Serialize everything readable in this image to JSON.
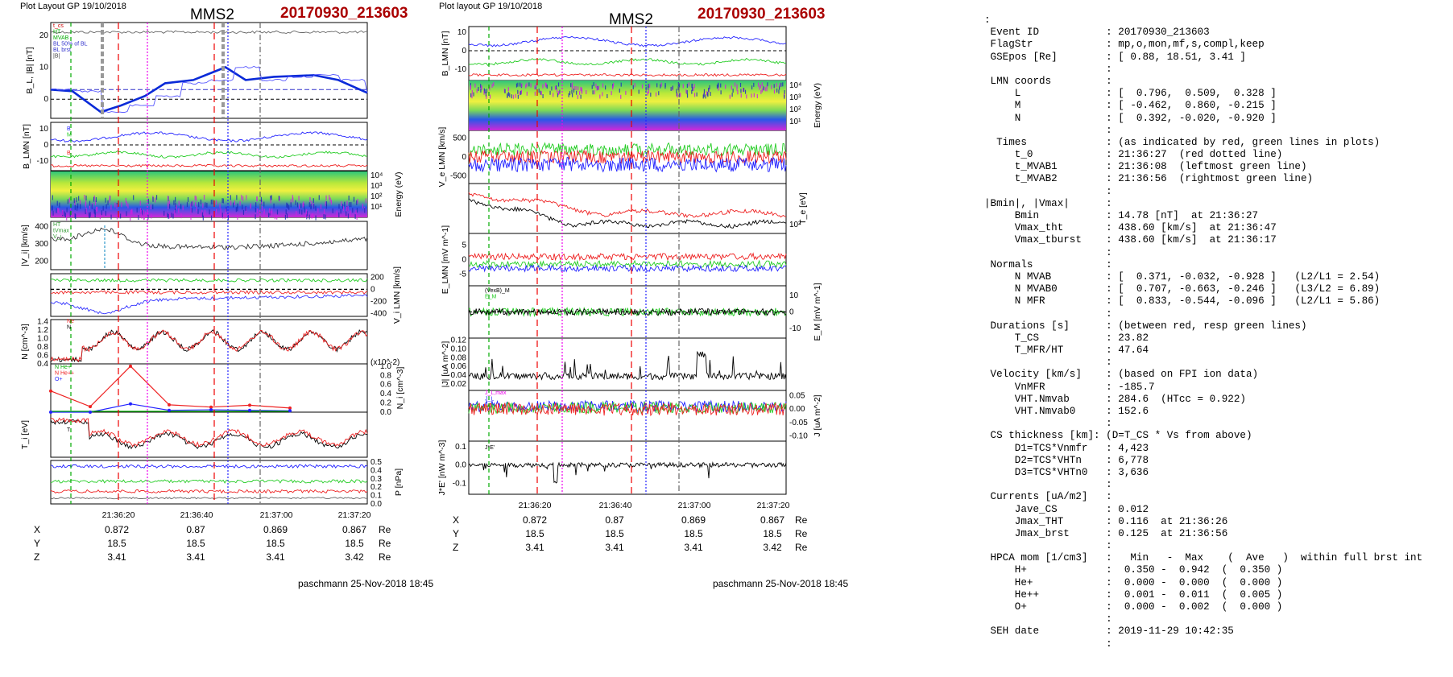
{
  "left": {
    "header": "Plot Layout GP 19/10/2018",
    "sc": "MMS2",
    "event": "20170930_213603",
    "footer": "paschmann 25-Nov-2018 18:45"
  },
  "right": {
    "header": "Plot layout GP 19/10/2018",
    "sc": "MMS2",
    "event": "20170930_213603",
    "footer": "paschmann 25-Nov-2018 18:45"
  },
  "time_ticks": [
    "21:36:20",
    "21:36:40",
    "21:37:00",
    "21:37:20"
  ],
  "position_table": {
    "rows": [
      {
        "label": "X",
        "values": [
          "0.872",
          "0.87",
          "0.869",
          "0.867"
        ],
        "unit": "Re"
      },
      {
        "label": "Y",
        "values": [
          "18.5",
          "18.5",
          "18.5",
          "18.5"
        ],
        "unit": "Re"
      },
      {
        "label": "Z",
        "values": [
          "3.41",
          "3.41",
          "3.41",
          "3.42"
        ],
        "unit": "Re"
      }
    ]
  },
  "chart_data": [
    {
      "type": "line",
      "panel": "L1",
      "ylabel": "B_L, |B| [nT]",
      "yticks": [
        "20",
        "10",
        "0"
      ],
      "legend": [
        "t_cs",
        "HT",
        "MVAB",
        "BL 50% of BL",
        "BL brst",
        "|B|"
      ]
    },
    {
      "type": "line",
      "panel": "L2",
      "ylabel": "B_LMN [nT]",
      "yticks": [
        "10",
        "0",
        "-10"
      ],
      "legend": [
        "B_L",
        "B_M",
        "B_N"
      ]
    },
    {
      "type": "heatmap",
      "panel": "L3",
      "ylabel": "Energy (eV)",
      "yticks": [
        "10^4",
        "10^3",
        "10^2",
        "10^1"
      ]
    },
    {
      "type": "line",
      "panel": "L4",
      "ylabel": "|V_i| [km/s]",
      "yticks": [
        "400",
        "300",
        "200"
      ],
      "legend": [
        "HT",
        "tVmax",
        "V_i"
      ]
    },
    {
      "type": "line",
      "panel": "L5",
      "ylabel": "V_i LMN [km/s]",
      "yticks": [
        "200",
        "0",
        "-200",
        "-400"
      ],
      "legend": [
        "V_L",
        "V_M",
        "V_N"
      ]
    },
    {
      "type": "line",
      "panel": "L6",
      "ylabel": "N [cm^-3]",
      "yticks": [
        "1.4",
        "1.2",
        "1.0",
        "0.8",
        "0.6",
        "0.4"
      ],
      "legend": [
        "Ne",
        "Ni"
      ]
    },
    {
      "type": "line",
      "panel": "L7",
      "ylabel": "N_i [cm^-3]",
      "yticks": [
        "1.0",
        "0.8",
        "0.6",
        "0.4",
        "0.2",
        "0.0"
      ],
      "scale": "(x10^-2)",
      "legend": [
        "N He+",
        "N He++",
        "O+"
      ],
      "series": [
        {
          "name": "N He++",
          "values": [
            0.46,
            0.12,
            1.0,
            0.16,
            0.11,
            0.15,
            0.09
          ]
        },
        {
          "name": "O+",
          "values": [
            0.0,
            0.0,
            0.18,
            0.04,
            0.05,
            0.04,
            0.03
          ]
        }
      ]
    },
    {
      "type": "line",
      "panel": "L8",
      "ylabel": "T_i [eV]",
      "legend": [
        "T_i"
      ]
    },
    {
      "type": "line",
      "panel": "L9",
      "ylabel": "P [nPa]",
      "yticks": [
        "0.5",
        "0.4",
        "0.3",
        "0.2",
        "0.1",
        "0.0"
      ],
      "legend": [
        "P_t",
        "P_b",
        "P_i",
        "P_e"
      ]
    },
    {
      "type": "line",
      "panel": "R1",
      "ylabel": "B_LMN [nT]",
      "yticks": [
        "10",
        "0",
        "-10"
      ],
      "legend": [
        "B_L",
        "B_M",
        "B_N"
      ]
    },
    {
      "type": "heatmap",
      "panel": "R2",
      "ylabel": "Energy (eV)",
      "yticks": [
        "10^4",
        "10^3",
        "10^2",
        "10^1"
      ]
    },
    {
      "type": "line",
      "panel": "R3",
      "ylabel": "V_e LMN [km/s]",
      "yticks": [
        "500",
        "0",
        "-500"
      ],
      "legend": [
        "V_L"
      ]
    },
    {
      "type": "line",
      "panel": "R4",
      "ylabel": "T_e [eV]",
      "yticks": [
        "10^2"
      ],
      "legend": [
        "T_e"
      ]
    },
    {
      "type": "line",
      "panel": "R5",
      "ylabel": "E_LMN [mV m^-1]",
      "yticks": [
        "5",
        "0",
        "-5"
      ],
      "legend": [
        "E_L",
        "E_M",
        "E_N"
      ]
    },
    {
      "type": "line",
      "panel": "R6",
      "ylabel": "E_M [mV m^-1]",
      "yticks": [
        "10",
        "0",
        "-10"
      ],
      "legend": [
        "(VexB)_M",
        "E_M"
      ]
    },
    {
      "type": "line",
      "panel": "R7",
      "ylabel": "|J| [uA m^-2]",
      "yticks": [
        "0.12",
        "0.10",
        "0.08",
        "0.06",
        "0.04",
        "0.02"
      ],
      "legend": [
        "|J|"
      ]
    },
    {
      "type": "line",
      "panel": "R8",
      "ylabel": "J [uA m^-2]",
      "yticks": [
        "0.05",
        "0.00",
        "-0.05",
        "-0.10"
      ],
      "legend": [
        "J_L,max",
        "J_L"
      ]
    },
    {
      "type": "line",
      "panel": "R9",
      "ylabel": "J*E' [nW m^-3]",
      "yticks": [
        "0.1",
        "0.0",
        "-0.1"
      ],
      "legend": [
        "J*E'"
      ]
    }
  ],
  "info_lines": [
    ":",
    " Event ID           : 20170930_213603",
    " FlagStr            : mp,o,mon,mf,s,compl,keep",
    " GSEpos [Re]        : [ 0.88, 18.51, 3.41 ]",
    "                    :",
    " LMN coords         :",
    "     L              : [  0.796,  0.509,  0.328 ]",
    "     M              : [ -0.462,  0.860, -0.215 ]",
    "     N              : [  0.392, -0.020, -0.920 ]",
    "                    :",
    "  Times             : (as indicated by red, green lines in plots)",
    "     t_0            : 21:36:27  (red dotted line)",
    "     t_MVAB1        : 21:36:08  (leftmost green line)",
    "     t_MVAB2        : 21:36:56  (rightmost green line)",
    "                    :",
    "|Bmin|, |Vmax|      :",
    "     Bmin           : 14.78 [nT]  at 21:36:27",
    "     Vmax_tht       : 438.60 [km/s]  at 21:36:47",
    "     Vmax_tburst    : 438.60 [km/s]  at 21:36:17",
    "                    :",
    " Normals            :",
    "     N MVAB         : [  0.371, -0.032, -0.928 ]   (L2/L1 = 2.54)",
    "     N MVAB0        : [  0.707, -0.663, -0.246 ]   (L3/L2 = 6.89)",
    "     N MFR          : [  0.833, -0.544, -0.096 ]   (L2/L1 = 5.86)",
    "                    :",
    " Durations [s]      : (between red, resp green lines)",
    "     T_CS           : 23.82",
    "     T_MFR/HT       : 47.64",
    "                    :",
    " Velocity [km/s]    : (based on FPI ion data)",
    "     VnMFR          : -185.7",
    "     VHT.Nmvab      : 284.6  (HTcc = 0.922)",
    "     VHT.Nmvab0     : 152.6",
    "                    :",
    " CS thickness [km]: (D=T_CS * Vs from above)",
    "     D1=TCS*Vnmfr   : 4,423",
    "     D2=TCS*VHTn    : 6,778",
    "     D3=TCS*VHTn0   : 3,636",
    "                    :",
    " Currents [uA/m2]   :",
    "     Jave_CS        : 0.012",
    "     Jmax_THT       : 0.116  at 21:36:26",
    "     Jmax_brst      : 0.125  at 21:36:56",
    "                    :",
    " HPCA mom [1/cm3]   :   Min   -  Max    (  Ave   )  within full brst int",
    "     H+             :  0.350 -  0.942  (  0.350 )",
    "     He+            :  0.000 -  0.000  (  0.000 )",
    "     He++           :  0.001 -  0.011  (  0.005 )",
    "     O+             :  0.000 -  0.002  (  0.000 )",
    "                    :",
    " SEH date           : 2019-11-29 10:42:35",
    "                    :"
  ]
}
